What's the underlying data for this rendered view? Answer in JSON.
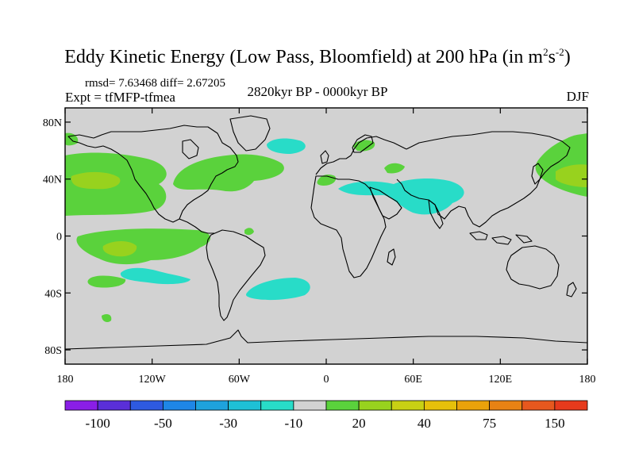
{
  "figure": {
    "title_main": "Eddy Kinetic Energy (Low Pass, Bloomfield) at 200 hPa (in m",
    "title_sup1": "2",
    "title_mid": "s",
    "title_sup2": "-2",
    "title_end": ")",
    "stats": "rmsd= 7.63468 diff= 2.67205",
    "experiment": "Expt = tfMFP-tfmea",
    "period": "2820kyr BP - 0000kyr BP",
    "season": "DJF"
  },
  "map": {
    "lon_range": [
      -180,
      180
    ],
    "lat_range": [
      -90,
      90
    ],
    "x_ticks": [
      {
        "lon": -180,
        "label": "180"
      },
      {
        "lon": -120,
        "label": "120W"
      },
      {
        "lon": -60,
        "label": "60W"
      },
      {
        "lon": 0,
        "label": "0"
      },
      {
        "lon": 60,
        "label": "60E"
      },
      {
        "lon": 120,
        "label": "120E"
      },
      {
        "lon": 180,
        "label": "180"
      }
    ],
    "y_ticks": [
      {
        "lat": 80,
        "label": "80N"
      },
      {
        "lat": 40,
        "label": "40N"
      },
      {
        "lat": 0,
        "label": "0"
      },
      {
        "lat": -40,
        "label": "40S"
      },
      {
        "lat": -80,
        "label": "80S"
      }
    ],
    "background_color": "#d2d2d2"
  },
  "colorbar": {
    "colors": [
      "#8a1ee6",
      "#5a2fd8",
      "#2e5ae0",
      "#1e86e6",
      "#1ea2dc",
      "#1ec0d6",
      "#28dcc8",
      "#d2d2d2",
      "#5ad23c",
      "#98d21e",
      "#c8d014",
      "#e6c00a",
      "#eaa20a",
      "#e88214",
      "#e6581e",
      "#e63a1c"
    ],
    "labels": [
      {
        "after_box": 1,
        "text": "-100"
      },
      {
        "after_box": 3,
        "text": "-50"
      },
      {
        "after_box": 5,
        "text": "-30"
      },
      {
        "after_box": 7,
        "text": "-10"
      },
      {
        "after_box": 9,
        "text": "20"
      },
      {
        "after_box": 11,
        "text": "40"
      },
      {
        "after_box": 13,
        "text": "75"
      },
      {
        "after_box": 15,
        "text": "150"
      }
    ]
  },
  "chart_data": {
    "type": "heatmap",
    "title": "Eddy Kinetic Energy (Low Pass, Bloomfield) at 200 hPa (in m2s-2)",
    "x_axis": "longitude",
    "y_axis": "latitude",
    "regions": [
      {
        "name": "north-pacific-positive",
        "value_range": [
          10,
          20
        ],
        "lon": [
          -175,
          -125
        ],
        "lat": [
          20,
          55
        ]
      },
      {
        "name": "north-pacific-core",
        "value_range": [
          20,
          30
        ],
        "lon": [
          -172,
          -150
        ],
        "lat": [
          32,
          44
        ]
      },
      {
        "name": "north-atlantic-positive",
        "value_range": [
          10,
          20
        ],
        "lon": [
          -100,
          -35
        ],
        "lat": [
          28,
          52
        ]
      },
      {
        "name": "eurasia-negative",
        "value_range": [
          -20,
          -10
        ],
        "lon": [
          10,
          85
        ],
        "lat": [
          20,
          45
        ]
      },
      {
        "name": "north-atlantic-negative",
        "value_range": [
          -20,
          -10
        ],
        "lon": [
          -40,
          -25
        ],
        "lat": [
          55,
          62
        ]
      },
      {
        "name": "tropical-pacific-positive",
        "value_range": [
          10,
          20
        ],
        "lon": [
          -170,
          -95
        ],
        "lat": [
          -15,
          5
        ]
      },
      {
        "name": "south-pacific-negative",
        "value_range": [
          -20,
          -10
        ],
        "lon": [
          -145,
          -100
        ],
        "lat": [
          -30,
          -20
        ]
      },
      {
        "name": "south-atlantic-negative",
        "value_range": [
          -20,
          -10
        ],
        "lon": [
          -35,
          5
        ],
        "lat": [
          -42,
          -30
        ]
      },
      {
        "name": "northwest-pacific-positive",
        "value_range": [
          10,
          20
        ],
        "lon": [
          150,
          180
        ],
        "lat": [
          25,
          60
        ]
      }
    ]
  }
}
